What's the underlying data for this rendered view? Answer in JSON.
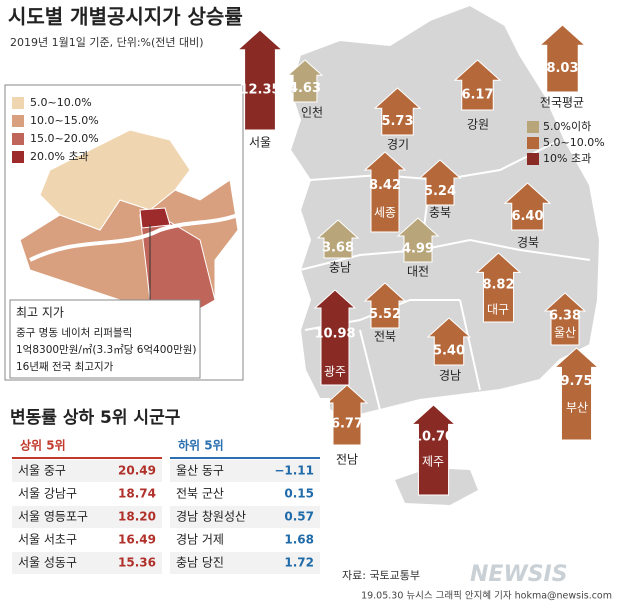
{
  "header": {
    "title": "시도별 개별공시지가 상승률",
    "subtitle": "2019년 1월1일 기준, 단위:%(전년 대비)"
  },
  "seoul_legend": [
    {
      "label": "5.0~10.0%",
      "color": "#f0d6b0"
    },
    {
      "label": "10.0~15.0%",
      "color": "#d9a07f"
    },
    {
      "label": "15.0~20.0%",
      "color": "#c0655a"
    },
    {
      "label": "20.0% 초과",
      "color": "#9e2b2b"
    }
  ],
  "top_price": {
    "title": "최고 지가",
    "lines": [
      "중구 명동 네이처 리퍼블릭",
      "1억8300만원/㎡(3.3㎡당 6억400만원)",
      "16년째 전국 최고지가"
    ]
  },
  "legend": [
    {
      "label": "5.0%이하",
      "color": "#b8a57a"
    },
    {
      "label": "5.0~10.0%",
      "color": "#b5683a"
    },
    {
      "label": "10% 초과",
      "color": "#8a2a24"
    }
  ],
  "regions": [
    {
      "name": "서울",
      "value": "12.35",
      "tier": 2
    },
    {
      "name": "인천",
      "value": "4.63",
      "tier": 0
    },
    {
      "name": "경기",
      "value": "5.73",
      "tier": 1
    },
    {
      "name": "강원",
      "value": "6.17",
      "tier": 1
    },
    {
      "name": "전국평균",
      "value": "8.03",
      "tier": 1
    },
    {
      "name": "세종",
      "value": "8.42",
      "tier": 1
    },
    {
      "name": "충북",
      "value": "5.24",
      "tier": 1
    },
    {
      "name": "경북",
      "value": "6.40",
      "tier": 1
    },
    {
      "name": "충남",
      "value": "3.68",
      "tier": 0
    },
    {
      "name": "대전",
      "value": "4.99",
      "tier": 0
    },
    {
      "name": "전북",
      "value": "5.52",
      "tier": 1
    },
    {
      "name": "광주",
      "value": "10.98",
      "tier": 2
    },
    {
      "name": "대구",
      "value": "8.82",
      "tier": 1
    },
    {
      "name": "울산",
      "value": "6.38",
      "tier": 1
    },
    {
      "name": "부산",
      "value": "9.75",
      "tier": 1
    },
    {
      "name": "경남",
      "value": "5.40",
      "tier": 1
    },
    {
      "name": "전남",
      "value": "6.77",
      "tier": 1
    },
    {
      "name": "제주",
      "value": "10.70",
      "tier": 2
    }
  ],
  "ranking": {
    "title": "변동률 상하 5위 시군구",
    "top": {
      "title": "상위 5위",
      "rows": [
        [
          "서울 중구",
          "20.49"
        ],
        [
          "서울 강남구",
          "18.74"
        ],
        [
          "서울 영등포구",
          "18.20"
        ],
        [
          "서울 서초구",
          "16.49"
        ],
        [
          "서울 성동구",
          "15.36"
        ]
      ]
    },
    "bottom": {
      "title": "하위 5위",
      "rows": [
        [
          "울산 동구",
          "−1.11"
        ],
        [
          "전북 군산",
          "0.15"
        ],
        [
          "경남 창원성산",
          "0.57"
        ],
        [
          "경남 거제",
          "1.68"
        ],
        [
          "충남 당진",
          "1.72"
        ]
      ]
    }
  },
  "footer": {
    "source": "자료: 국토교통부",
    "credit": "19.05.30 뉴시스 그래픽 안지혜 기자 hokma@newsis.com",
    "logo": "NEWSIS"
  }
}
